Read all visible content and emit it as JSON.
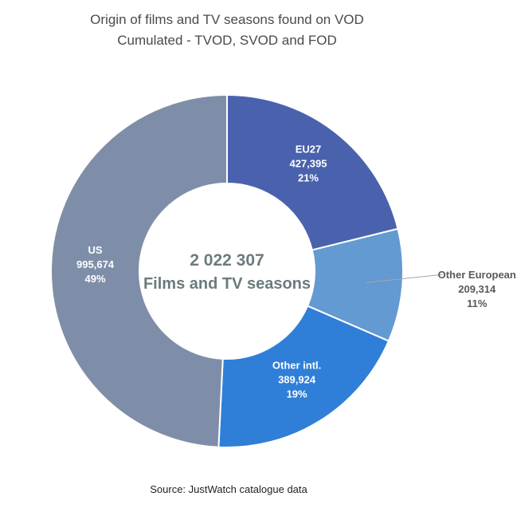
{
  "chart_data": {
    "type": "pie",
    "title": "Origin of films and TV seasons found on VOD",
    "subtitle": "Cumulated - TVOD, SVOD and FOD",
    "center_value": "2 022 307",
    "center_label": "Films and TV seasons",
    "source": "Source: JustWatch catalogue data",
    "slices": [
      {
        "name": "EU27",
        "value": 427395,
        "value_label": "427,395",
        "percent": "21%",
        "color": "#4a62ad"
      },
      {
        "name": "Other European",
        "value": 209314,
        "value_label": "209,314",
        "percent": "11%",
        "color": "#629ad1"
      },
      {
        "name": "Other intl.",
        "value": 389924,
        "value_label": "389,924",
        "percent": "19%",
        "color": "#2f7fd8"
      },
      {
        "name": "US",
        "value": 995674,
        "value_label": "995,674",
        "percent": "49%",
        "color": "#7f8ea8"
      }
    ]
  }
}
